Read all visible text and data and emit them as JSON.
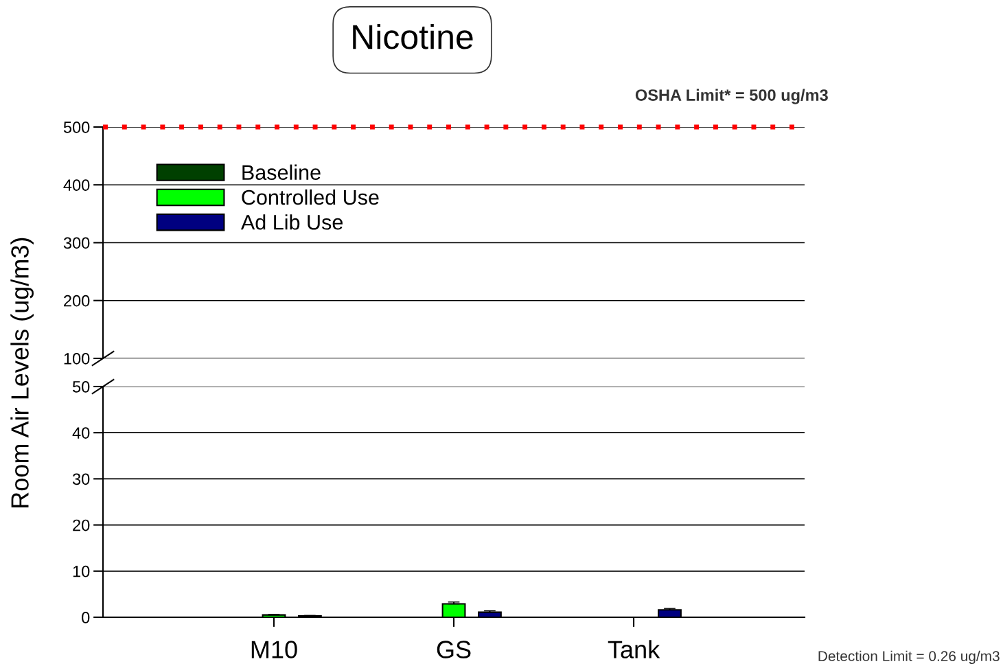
{
  "chart_data": [
    {
      "type": "bar",
      "title": "Nicotine",
      "ylabel": "Room Air Levels (ug/m3)",
      "series": [
        {
          "name": "Baseline",
          "color": "#004000",
          "values": [
            null,
            null,
            null
          ]
        },
        {
          "name": "Controlled Use",
          "color": "#00ff00",
          "values": [
            null,
            null,
            null
          ]
        },
        {
          "name": "Ad Lib Use",
          "color": "#000080",
          "values": [
            null,
            null,
            null
          ]
        }
      ],
      "ylim": [
        100,
        500
      ],
      "yticks": [
        100,
        200,
        300,
        400,
        500
      ],
      "grid": "y",
      "legend": "top left",
      "tick_labels": "y",
      "ref_lines": [
        {
          "axis": "y",
          "value": 500,
          "label": "OSHA Limit* = 500 ug/m3",
          "color": "#ff0000",
          "line_style": "dotted"
        }
      ]
    },
    {
      "type": "bar",
      "categories": [
        "M10",
        "GS",
        "Tank"
      ],
      "series": [
        {
          "color": "#004000",
          "values": [
            null,
            null,
            null
          ],
          "errors": [
            null,
            null,
            null
          ]
        },
        {
          "color": "#00ff00",
          "values": [
            0.5,
            2.9,
            null
          ],
          "errors": [
            0.1,
            0.4,
            null
          ]
        },
        {
          "color": "#000080",
          "values": [
            0.3,
            1.1,
            1.6
          ],
          "errors": [
            0.1,
            0.3,
            0.3
          ]
        }
      ],
      "ylim": [
        0,
        50
      ],
      "yticks": [
        0,
        10,
        20,
        30,
        40,
        50
      ],
      "grid": "y",
      "annotations": [
        "Detection Limit = 0.26 ug/m3"
      ]
    }
  ]
}
